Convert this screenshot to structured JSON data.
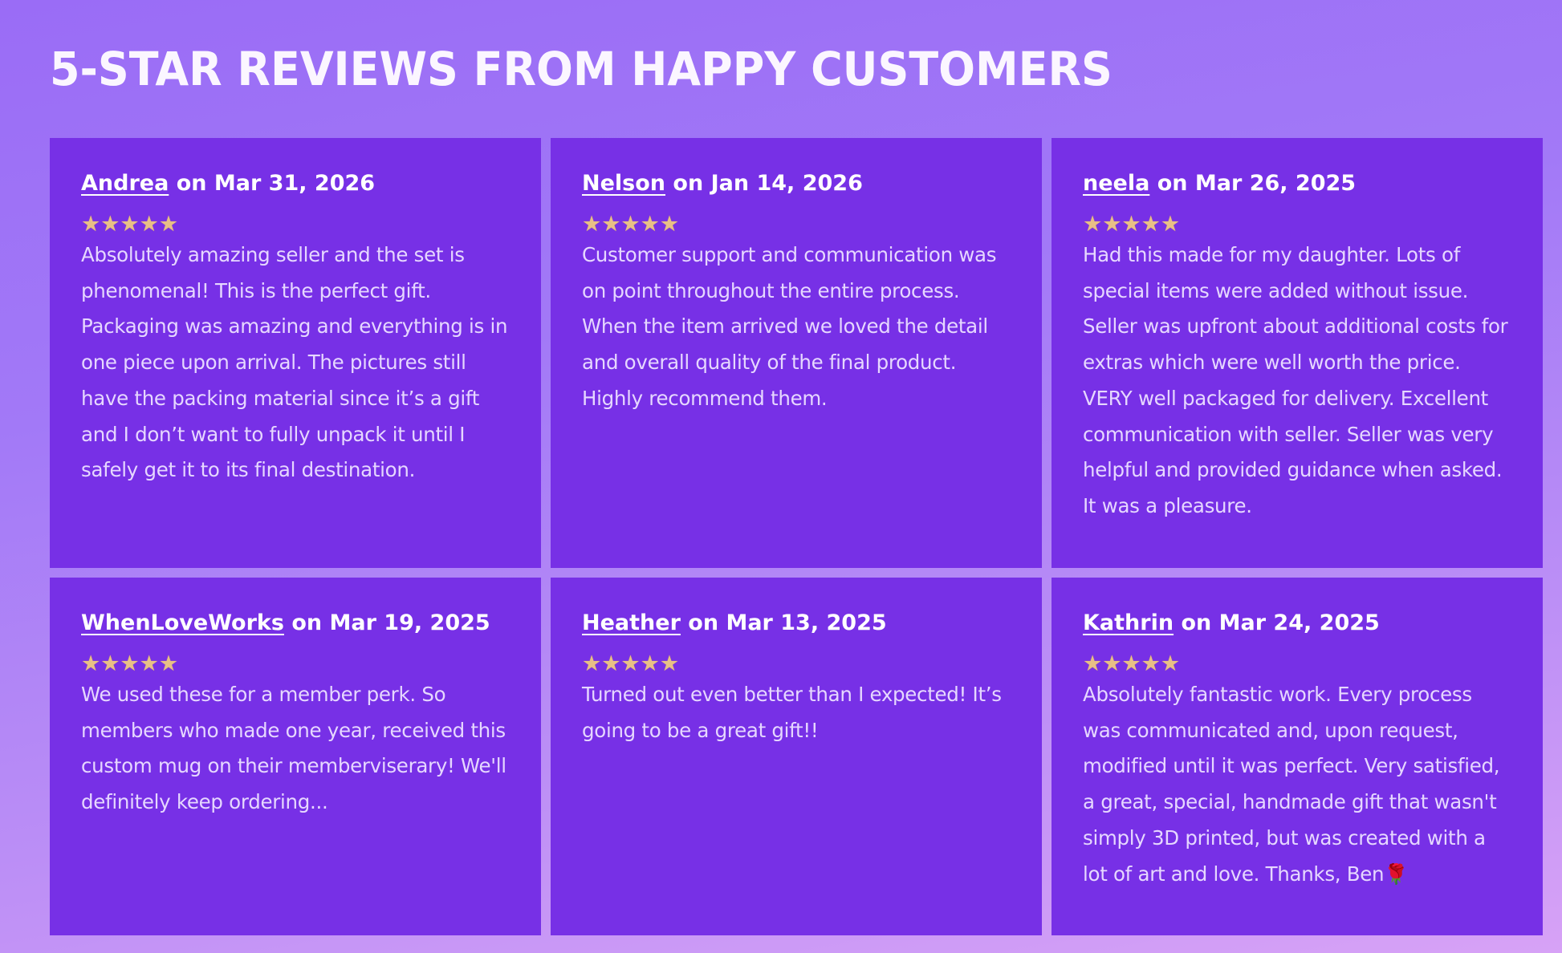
{
  "page": {
    "title": "5-STAR REVIEWS FROM HAPPY CUSTOMERS"
  },
  "colors": {
    "card_background": "#7730e6",
    "page_gradient_start": "#9a6cf6",
    "page_gradient_end": "#d7a2f6",
    "star_color": "#e8bf86"
  },
  "reviews": [
    {
      "reviewer": "Andrea",
      "date_text": " on Mar 31, 2026",
      "rating": 5,
      "rating_symbol": "★★★★★",
      "text": "Absolutely amazing seller and the set is phenomenal! This is the perfect gift. Packaging was amazing and everything is in one piece upon arrival. The pictures still have the packing material since it’s a gift and I don’t want to fully unpack it until I safely get it to its final destination."
    },
    {
      "reviewer": "Nelson",
      "date_text": " on Jan 14, 2026",
      "rating": 5,
      "rating_symbol": "★★★★★",
      "text": "Customer support and communication was on point throughout the entire process. When the item arrived we loved the detail and overall quality of the final product. Highly recommend them."
    },
    {
      "reviewer": "neela",
      "date_text": " on Mar 26, 2025",
      "rating": 5,
      "rating_symbol": "★★★★★",
      "text": "Had this made for my daughter. Lots of special items were added without issue. Seller was upfront about additional costs for extras which were well worth the price. VERY well packaged for delivery. Excellent communication with seller. Seller was very helpful and provided guidance when asked. It was a pleasure."
    },
    {
      "reviewer": "WhenLoveWorks",
      "date_text": " on Mar 19, 2025",
      "rating": 5,
      "rating_symbol": "★★★★★",
      "text": "We used these for a member perk. So members who made one year, received this custom mug on their memberviserary! We'll definitely keep ordering..."
    },
    {
      "reviewer": "Heather",
      "date_text": " on Mar 13, 2025",
      "rating": 5,
      "rating_symbol": "★★★★★",
      "text": "Turned out even better than I expected! It’s going to be a great gift!!"
    },
    {
      "reviewer": "Kathrin",
      "date_text": " on Mar 24, 2025",
      "rating": 5,
      "rating_symbol": "★★★★★",
      "text": "Absolutely fantastic work. Every process was communicated and, upon request, modified until it was perfect. Very satisfied, a great, special, handmade gift that wasn't simply 3D printed, but was created with a lot of art and love. Thanks, Ben🌹"
    }
  ]
}
